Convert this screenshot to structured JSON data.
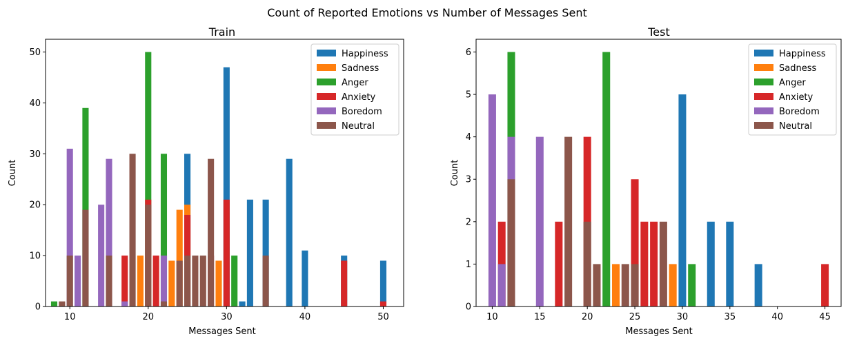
{
  "figure_title": "Count of Reported Emotions vs Number of Messages Sent",
  "colors": {
    "Happiness": "#1f77b4",
    "Sadness": "#ff7f0e",
    "Anger": "#2ca02c",
    "Anxiety": "#d62728",
    "Boredom": "#9467bd",
    "Neutral": "#8c564b"
  },
  "legend_placement": "top-right",
  "chart_data": [
    {
      "type": "bar",
      "title": "Train",
      "xlabel": "Messages Sent",
      "ylabel": "Count",
      "xlim": [
        6.9,
        52.6
      ],
      "ylim": [
        0,
        52.5
      ],
      "xticks": [
        10,
        20,
        30,
        40,
        50
      ],
      "yticks": [
        0,
        10,
        20,
        30,
        40,
        50
      ],
      "bar_width": 0.8,
      "grid": false,
      "legend": [
        "Happiness",
        "Sadness",
        "Anger",
        "Anxiety",
        "Boredom",
        "Neutral"
      ],
      "series": [
        {
          "name": "Happiness",
          "points": [
            [
              25,
              30
            ],
            [
              30,
              47
            ],
            [
              32,
              1
            ],
            [
              33,
              21
            ],
            [
              35,
              21
            ],
            [
              38,
              29
            ],
            [
              40,
              11
            ],
            [
              45,
              10
            ],
            [
              50,
              9
            ]
          ]
        },
        {
          "name": "Sadness",
          "points": [
            [
              19,
              10
            ],
            [
              23,
              9
            ],
            [
              24,
              19
            ],
            [
              25,
              20
            ],
            [
              29,
              9
            ]
          ]
        },
        {
          "name": "Anger",
          "points": [
            [
              8,
              1
            ],
            [
              12,
              39
            ],
            [
              20,
              50
            ],
            [
              22,
              30
            ],
            [
              31,
              10
            ]
          ]
        },
        {
          "name": "Anxiety",
          "points": [
            [
              17,
              10
            ],
            [
              20,
              21
            ],
            [
              21,
              10
            ],
            [
              25,
              18
            ],
            [
              28,
              10
            ],
            [
              30,
              21
            ],
            [
              45,
              9
            ],
            [
              50,
              1
            ]
          ]
        },
        {
          "name": "Boredom",
          "points": [
            [
              10,
              31
            ],
            [
              11,
              10
            ],
            [
              14,
              20
            ],
            [
              15,
              29
            ],
            [
              17,
              1
            ],
            [
              22,
              10
            ]
          ]
        },
        {
          "name": "Neutral",
          "points": [
            [
              9,
              1
            ],
            [
              10,
              10
            ],
            [
              12,
              19
            ],
            [
              15,
              10
            ],
            [
              18,
              30
            ],
            [
              20,
              20
            ],
            [
              22,
              1
            ],
            [
              24,
              9
            ],
            [
              25,
              10
            ],
            [
              26,
              10
            ],
            [
              27,
              10
            ],
            [
              28,
              29
            ],
            [
              35,
              10
            ]
          ]
        }
      ]
    },
    {
      "type": "bar",
      "title": "Test",
      "xlabel": "Messages Sent",
      "ylabel": "Count",
      "xlim": [
        8.3,
        46.7
      ],
      "ylim": [
        0,
        6.3
      ],
      "xticks": [
        10,
        15,
        20,
        25,
        30,
        35,
        40,
        45
      ],
      "yticks": [
        0,
        1,
        2,
        3,
        4,
        5,
        6
      ],
      "bar_width": 0.8,
      "grid": false,
      "legend": [
        "Happiness",
        "Sadness",
        "Anger",
        "Anxiety",
        "Boredom",
        "Neutral"
      ],
      "series": [
        {
          "name": "Happiness",
          "points": [
            [
              30,
              5
            ],
            [
              33,
              2
            ],
            [
              35,
              2
            ],
            [
              38,
              1
            ]
          ]
        },
        {
          "name": "Sadness",
          "points": [
            [
              23,
              1
            ],
            [
              29,
              1
            ]
          ]
        },
        {
          "name": "Anger",
          "points": [
            [
              12,
              6
            ],
            [
              22,
              6
            ],
            [
              31,
              1
            ]
          ]
        },
        {
          "name": "Anxiety",
          "points": [
            [
              11,
              2
            ],
            [
              17,
              2
            ],
            [
              20,
              4
            ],
            [
              25,
              3
            ],
            [
              26,
              2
            ],
            [
              27,
              2
            ],
            [
              45,
              1
            ]
          ]
        },
        {
          "name": "Boredom",
          "points": [
            [
              10,
              5
            ],
            [
              11,
              1
            ],
            [
              12,
              4
            ],
            [
              15,
              4
            ]
          ]
        },
        {
          "name": "Neutral",
          "points": [
            [
              12,
              3
            ],
            [
              18,
              4
            ],
            [
              20,
              2
            ],
            [
              21,
              1
            ],
            [
              24,
              1
            ],
            [
              25,
              1
            ],
            [
              28,
              2
            ]
          ]
        }
      ]
    }
  ]
}
